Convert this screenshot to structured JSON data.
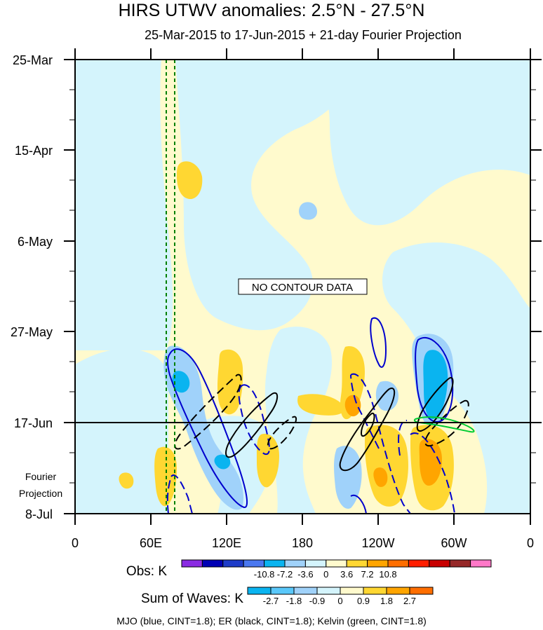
{
  "chart_data": {
    "type": "heatmap",
    "title": "HIRS UTWV anomalies: 2.5°N - 27.5°N",
    "subtitle": "25-Mar-2015 to 17-Jun-2015 + 21-day Fourier Projection",
    "x_ticks": [
      "0",
      "60E",
      "120E",
      "180",
      "120W",
      "60W",
      "0"
    ],
    "y_ticks": [
      "25-Mar",
      "15-Apr",
      "6-May",
      "27-May",
      "17-Jun",
      "8-Jul"
    ],
    "y_extra_label": [
      "Fourier",
      "Projection"
    ],
    "annotation": "NO CONTOUR DATA",
    "obs_label": "Obs: K",
    "obs_levels": [
      "-10.8",
      "-7.2",
      "-3.6",
      "0",
      "3.6",
      "7.2",
      "10.8"
    ],
    "obs_colors": [
      "#8a2be2",
      "#0000b4",
      "#1e3cc8",
      "#4a78f0",
      "#0ab4f0",
      "#a0d2fa",
      "#d4f4fc",
      "#fffacd",
      "#ffd732",
      "#ffa500",
      "#ff6e00",
      "#ff1e00",
      "#c80000",
      "#962828",
      "#ff78c8"
    ],
    "waves_label": "Sum of Waves: K",
    "waves_levels": [
      "-2.7",
      "-1.8",
      "-0.9",
      "0",
      "0.9",
      "1.8",
      "2.7"
    ],
    "waves_colors": [
      "#0ab4f0",
      "#5ac8fa",
      "#a0d2fa",
      "#d4f4fc",
      "#fffacd",
      "#ffd732",
      "#ffa500",
      "#ff6e00"
    ],
    "footer": "MJO (blue, CINT=1.8); ER (black, CINT=1.8); Kelvin (green, CINT=1.8)",
    "divider_date": "17-Jun",
    "colors": {
      "background": "#fffacd",
      "negative": "#d4f4fc",
      "mjo": "#0000cd",
      "er": "#000000",
      "kelvin": "#00cc33",
      "divider_dashed": "#008000"
    }
  }
}
